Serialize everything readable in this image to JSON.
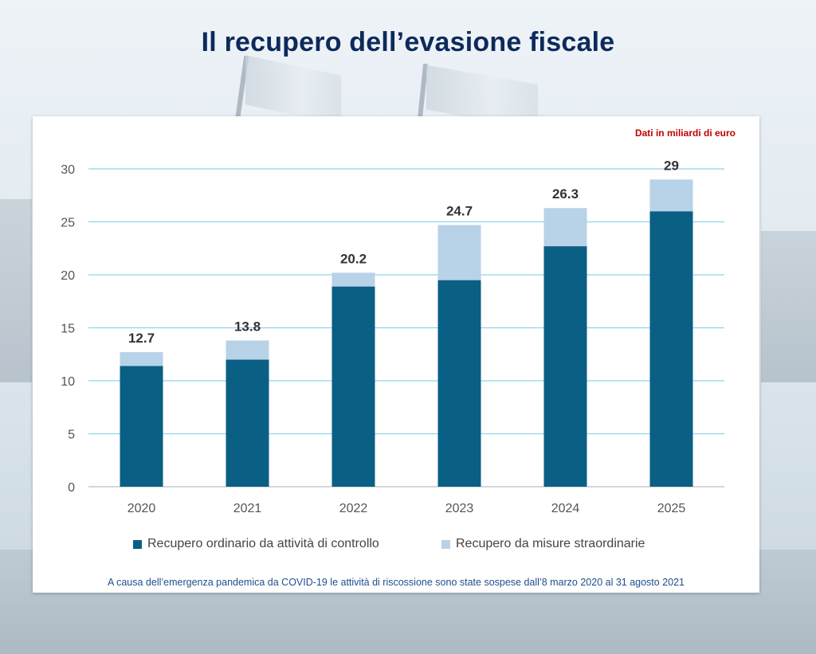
{
  "slide": {
    "title": "Il recupero dell’evasione fiscale",
    "unit_note": "Dati in miliardi di euro",
    "footnote": "A causa dell’emergenza pandemica da COVID-19 le attività di riscossione sono state sospese dall’8 marzo 2020 al 31 agosto 2021"
  },
  "colors": {
    "ordinary": "#0a5f85",
    "extraordinary": "#b8d2e8",
    "gridline": "#8fd3ea",
    "axis_text": "#555555",
    "total_label": "#333333",
    "title": "#0d2a5c"
  },
  "chart_data": {
    "type": "bar",
    "stacked": true,
    "title": "Il recupero dell’evasione fiscale",
    "categories": [
      "2020",
      "2021",
      "2022",
      "2023",
      "2024",
      "2025"
    ],
    "series": [
      {
        "name": "Recupero ordinario da attività di controllo",
        "values": [
          11.4,
          12.0,
          18.9,
          19.5,
          22.7,
          26.0
        ]
      },
      {
        "name": "Recupero da misure straordinarie",
        "values": [
          1.3,
          1.8,
          1.3,
          5.2,
          3.6,
          3.0
        ]
      }
    ],
    "totals": [
      "12.7",
      "13.8",
      "20.2",
      "24.7",
      "26.3",
      "29"
    ],
    "y_ticks": [
      0,
      5,
      10,
      15,
      20,
      25,
      30
    ],
    "ylim": [
      0,
      30
    ],
    "grid": true,
    "legend_position": "bottom",
    "xlabel": "",
    "ylabel": ""
  }
}
